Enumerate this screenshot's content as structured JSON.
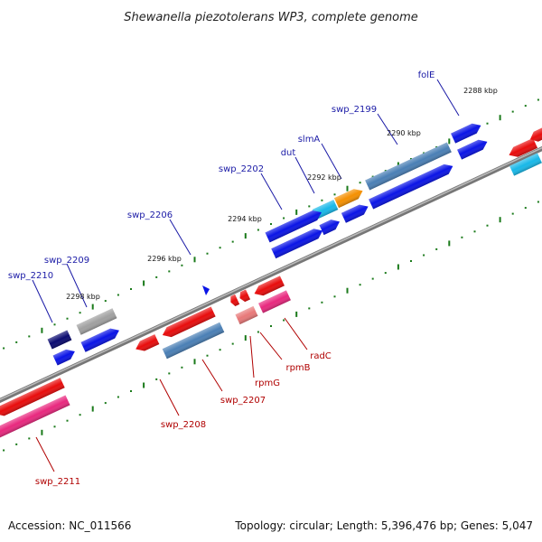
{
  "title": "Shewanella piezotolerans WP3, complete genome",
  "footer": {
    "accession": "Accession: NC_011566",
    "stats": "Topology: circular; Length: 5,396,476 bp; Genes: 5,047"
  },
  "colors": {
    "blue": "#0a14e6",
    "steel": "#4a7fb5",
    "navy": "#0a0a70",
    "gray": "#a0a0a0",
    "cyan": "#18b8e8",
    "orange": "#f59000",
    "red": "#e80c0c",
    "pink": "#e8287e",
    "lightred": "#e87878",
    "tick": "#1a7a1a",
    "backbone": "#888888"
  },
  "kbp_labels": [
    "2288 kbp",
    "2290 kbp",
    "2292 kbp",
    "2294 kbp",
    "2296 kbp",
    "2298 kbp"
  ],
  "gene_labels_top": [
    "folE",
    "swp_2199",
    "slmA",
    "dut",
    "swp_2202",
    "swp_2206",
    "swp_2209",
    "swp_2210"
  ],
  "gene_labels_bottom": [
    "radC",
    "rpmB",
    "rpmG",
    "swp_2207",
    "swp_2208",
    "swp_2211"
  ]
}
